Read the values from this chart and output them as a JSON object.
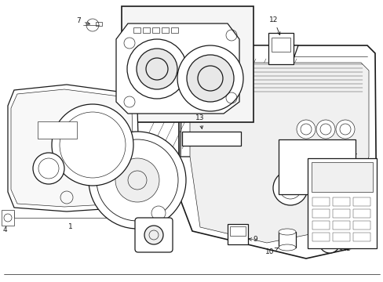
{
  "background_color": "#ffffff",
  "line_color": "#1a1a1a",
  "figsize": [
    4.89,
    3.6
  ],
  "dpi": 100,
  "lw_main": 0.9,
  "lw_thin": 0.45,
  "lw_thick": 1.2,
  "font_size": 6.5
}
